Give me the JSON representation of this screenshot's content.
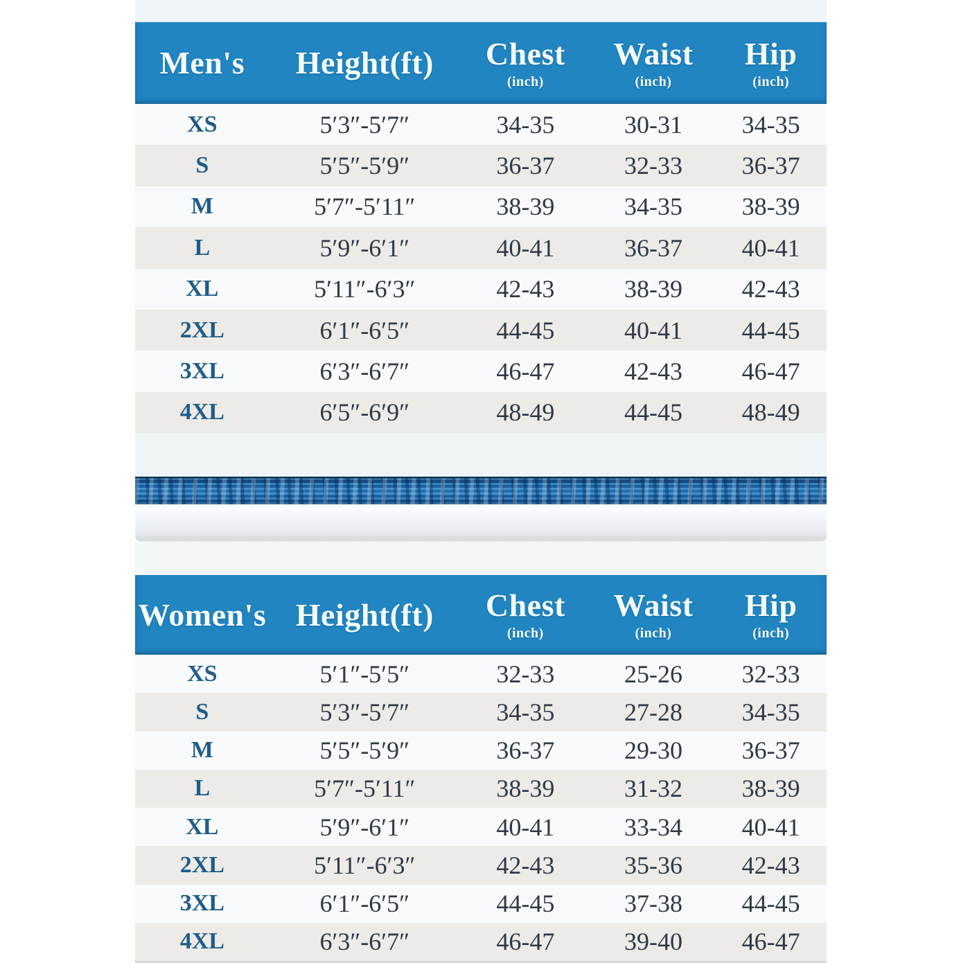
{
  "palette": {
    "header_blue": "#2185c1",
    "header_text": "#f4fcff",
    "row_light": "#f8fafb",
    "row_alt": "#ecebe7",
    "size_label_blue": "#1f5c88",
    "data_text": "#2f3845",
    "page_strip": "#eef4f7"
  },
  "divider": {
    "icon": "ocean-wave-strip"
  },
  "tables": [
    {
      "group_label": "Men's",
      "columns": [
        "Height(ft)",
        "Chest",
        "Waist",
        "Hip"
      ],
      "unit_label": "(inch)",
      "rows": [
        [
          "XS",
          "5′3″-5′7″",
          "34-35",
          "30-31",
          "34-35"
        ],
        [
          "S",
          "5′5″-5′9″",
          "36-37",
          "32-33",
          "36-37"
        ],
        [
          "M",
          "5′7″-5′11″",
          "38-39",
          "34-35",
          "38-39"
        ],
        [
          "L",
          "5′9″-6′1″",
          "40-41",
          "36-37",
          "40-41"
        ],
        [
          "XL",
          "5′11″-6′3″",
          "42-43",
          "38-39",
          "42-43"
        ],
        [
          "2XL",
          "6′1″-6′5″",
          "44-45",
          "40-41",
          "44-45"
        ],
        [
          "3XL",
          "6′3″-6′7″",
          "46-47",
          "42-43",
          "46-47"
        ],
        [
          "4XL",
          "6′5″-6′9″",
          "48-49",
          "44-45",
          "48-49"
        ]
      ]
    },
    {
      "group_label": "Women's",
      "columns": [
        "Height(ft)",
        "Chest",
        "Waist",
        "Hip"
      ],
      "unit_label": "(inch)",
      "rows": [
        [
          "XS",
          "5′1″-5′5″",
          "32-33",
          "25-26",
          "32-33"
        ],
        [
          "S",
          "5′3″-5′7″",
          "34-35",
          "27-28",
          "34-35"
        ],
        [
          "M",
          "5′5″-5′9″",
          "36-37",
          "29-30",
          "36-37"
        ],
        [
          "L",
          "5′7″-5′11″",
          "38-39",
          "31-32",
          "38-39"
        ],
        [
          "XL",
          "5′9″-6′1″",
          "40-41",
          "33-34",
          "40-41"
        ],
        [
          "2XL",
          "5′11″-6′3″",
          "42-43",
          "35-36",
          "42-43"
        ],
        [
          "3XL",
          "6′1″-6′5″",
          "44-45",
          "37-38",
          "44-45"
        ],
        [
          "4XL",
          "6′3″-6′7″",
          "46-47",
          "39-40",
          "46-47"
        ]
      ]
    }
  ]
}
